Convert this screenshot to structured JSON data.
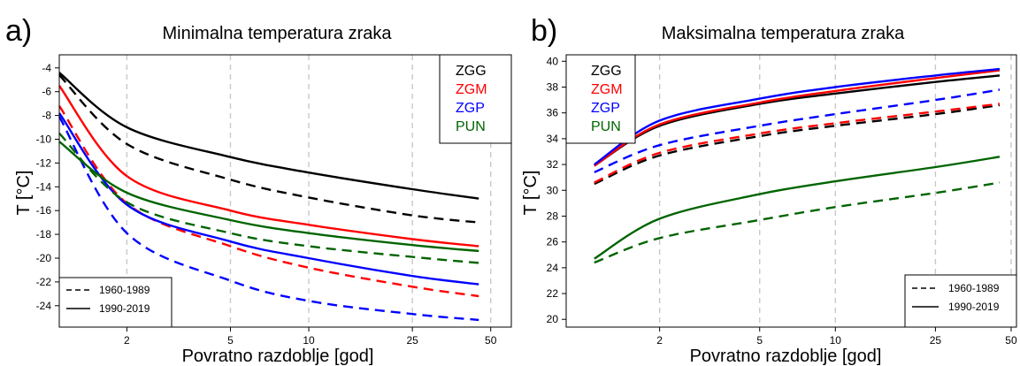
{
  "panels": [
    {
      "label": "a)",
      "title": "Minimalna temperatura zraka"
    },
    {
      "label": "b)",
      "title": "Maksimalna temperatura zraka"
    }
  ],
  "chart_data": [
    {
      "type": "line",
      "title": "Minimalna temperatura zraka",
      "xlabel": "Povratno razdoblje [god]",
      "ylabel": "T [°C]",
      "x_scale": "log",
      "x": [
        1.1,
        2,
        5,
        10,
        25,
        45
      ],
      "x_ticks": [
        2,
        5,
        10,
        25,
        50
      ],
      "y_ticks": [
        -24,
        -22,
        -20,
        -18,
        -16,
        -14,
        -12,
        -10,
        -8,
        -6,
        -4
      ],
      "ylim": [
        -25.8,
        -2.9
      ],
      "grid": "vertical dashed",
      "series": [
        {
          "name": "ZGG",
          "period": "1990-2019",
          "style": "solid",
          "color": "#000000",
          "values": [
            -4.4,
            -9.0,
            -11.5,
            -12.8,
            -14.2,
            -15.0
          ]
        },
        {
          "name": "ZGG",
          "period": "1960-1989",
          "style": "dashed",
          "color": "#000000",
          "values": [
            -4.6,
            -10.4,
            -13.4,
            -14.9,
            -16.4,
            -17.0
          ]
        },
        {
          "name": "ZGM",
          "period": "1990-2019",
          "style": "solid",
          "color": "#ff0000",
          "values": [
            -5.5,
            -13.1,
            -16.0,
            -17.2,
            -18.4,
            -19.0
          ]
        },
        {
          "name": "ZGM",
          "period": "1960-1989",
          "style": "dashed",
          "color": "#ff0000",
          "values": [
            -7.2,
            -15.4,
            -19.0,
            -20.8,
            -22.4,
            -23.2
          ]
        },
        {
          "name": "ZGP",
          "period": "1990-2019",
          "style": "solid",
          "color": "#0000ff",
          "values": [
            -7.8,
            -15.5,
            -18.6,
            -20.0,
            -21.5,
            -22.2
          ]
        },
        {
          "name": "ZGP",
          "period": "1960-1989",
          "style": "dashed",
          "color": "#0000ff",
          "values": [
            -8.1,
            -17.9,
            -21.9,
            -23.6,
            -24.7,
            -25.2
          ]
        },
        {
          "name": "PUN",
          "period": "1990-2019",
          "style": "solid",
          "color": "#006400",
          "values": [
            -10.2,
            -14.5,
            -16.8,
            -17.9,
            -18.9,
            -19.4
          ]
        },
        {
          "name": "PUN",
          "period": "1960-1989",
          "style": "dashed",
          "color": "#006400",
          "values": [
            -9.5,
            -15.3,
            -17.9,
            -19.0,
            -19.9,
            -20.4
          ]
        }
      ],
      "legend_stations": [
        "ZGG",
        "ZGM",
        "ZGP",
        "PUN"
      ],
      "legend_stations_placement": "top-right",
      "legend_periods": [
        {
          "label": "1960-1989",
          "style": "dashed"
        },
        {
          "label": "1990-2019",
          "style": "solid"
        }
      ],
      "legend_periods_placement": "bottom-left"
    },
    {
      "type": "line",
      "title": "Maksimalna temperatura zraka",
      "xlabel": "Povratno razdoblje [god]",
      "ylabel": "T [°C]",
      "x_scale": "log",
      "x": [
        1.1,
        2,
        5,
        10,
        25,
        45
      ],
      "x_ticks": [
        2,
        5,
        10,
        25,
        50
      ],
      "y_ticks": [
        20,
        22,
        24,
        26,
        28,
        30,
        32,
        34,
        36,
        38,
        40
      ],
      "ylim": [
        19.4,
        40.5
      ],
      "grid": "vertical dashed",
      "series": [
        {
          "name": "ZGG",
          "period": "1990-2019",
          "style": "solid",
          "color": "#000000",
          "values": [
            31.9,
            35.0,
            36.7,
            37.5,
            38.4,
            38.9
          ]
        },
        {
          "name": "ZGG",
          "period": "1960-1989",
          "style": "dashed",
          "color": "#000000",
          "values": [
            30.5,
            32.7,
            34.2,
            35.0,
            35.9,
            36.6
          ]
        },
        {
          "name": "ZGM",
          "period": "1990-2019",
          "style": "solid",
          "color": "#ff0000",
          "values": [
            31.9,
            35.1,
            36.8,
            37.7,
            38.7,
            39.3
          ]
        },
        {
          "name": "ZGM",
          "period": "1960-1989",
          "style": "dashed",
          "color": "#ff0000",
          "values": [
            30.6,
            32.9,
            34.4,
            35.2,
            36.1,
            36.7
          ]
        },
        {
          "name": "ZGP",
          "period": "1990-2019",
          "style": "solid",
          "color": "#0000ff",
          "values": [
            32.0,
            35.4,
            37.1,
            38.0,
            38.9,
            39.4
          ]
        },
        {
          "name": "ZGP",
          "period": "1960-1989",
          "style": "dashed",
          "color": "#0000ff",
          "values": [
            31.4,
            33.5,
            35.0,
            35.9,
            37.0,
            37.8
          ]
        },
        {
          "name": "PUN",
          "period": "1990-2019",
          "style": "solid",
          "color": "#006400",
          "values": [
            24.7,
            27.8,
            29.7,
            30.7,
            31.8,
            32.6
          ]
        },
        {
          "name": "PUN",
          "period": "1960-1989",
          "style": "dashed",
          "color": "#006400",
          "values": [
            24.4,
            26.3,
            27.7,
            28.7,
            29.8,
            30.6
          ]
        }
      ],
      "legend_stations": [
        "ZGG",
        "ZGM",
        "ZGP",
        "PUN"
      ],
      "legend_stations_placement": "top-left",
      "legend_periods": [
        {
          "label": "1960-1989",
          "style": "dashed"
        },
        {
          "label": "1990-2019",
          "style": "solid"
        }
      ],
      "legend_periods_placement": "bottom-right"
    }
  ]
}
